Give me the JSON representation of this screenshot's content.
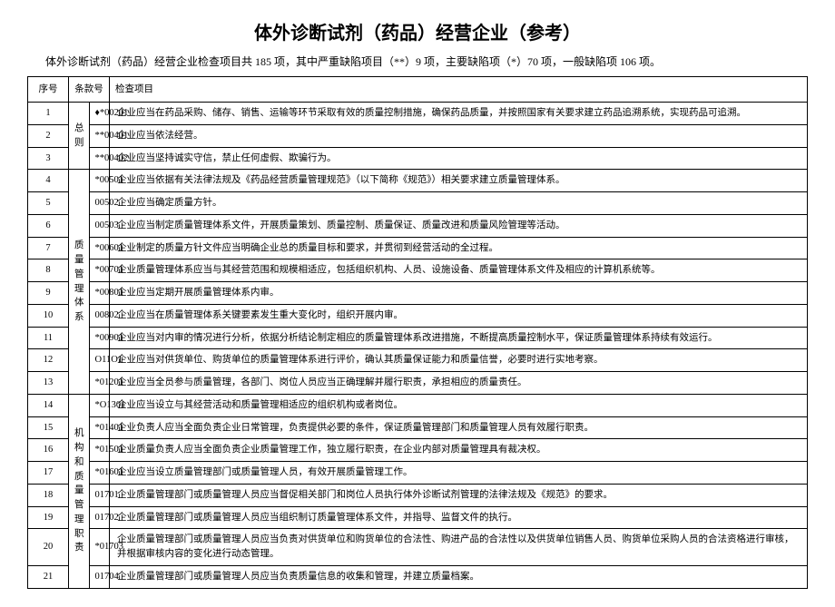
{
  "title": "体外诊断试剂（药品）经营企业（参考）",
  "subtitle": "体外诊断试剂（药品）经营企业检查项目共 185 项，其中严重缺陷项目（**）9 项，主要缺陷项（*）70 项，一般缺陷项 106 项。",
  "headers": {
    "seq": "序号",
    "clause": "条款号",
    "item": "检查项目"
  },
  "groups": [
    {
      "category": "总则",
      "rows": [
        {
          "seq": "1",
          "code": "♦*00201",
          "item": "企业应当在药品采购、储存、销售、运输等环节采取有效的质量控制措施，确保药品质量，并按照国家有关要求建立药品追溯系统，实现药品可追溯。"
        },
        {
          "seq": "2",
          "code": "**00401",
          "item": "企业应当依法经营。"
        },
        {
          "seq": "3",
          "code": "**00402",
          "item": "企业应当坚持诚实守信，禁止任何虚假、欺骗行为。"
        }
      ]
    },
    {
      "category": "质量管理体系",
      "rows": [
        {
          "seq": "4",
          "code": "*00501",
          "item": "企业应当依据有关法律法规及《药品经营质量管理规范》（以下简称《规范》）相关要求建立质量管理体系。"
        },
        {
          "seq": "5",
          "code": "00502",
          "item": "企业应当确定质量方针。"
        },
        {
          "seq": "6",
          "code": "00503",
          "item": "企业应当制定质量管理体系文件，开展质量策划、质量控制、质量保证、质量改进和质量风险管理等活动。"
        },
        {
          "seq": "7",
          "code": "*00601",
          "item": "企业制定的质量方针文件应当明确企业总的质量目标和要求，并贯彻到经营活动的全过程。"
        },
        {
          "seq": "8",
          "code": "*00701",
          "item": "企业质量管理体系应当与其经营范围和规模相适应，包括组织机构、人员、设施设备、质量管理体系文件及相应的计算机系统等。"
        },
        {
          "seq": "9",
          "code": "*00801",
          "item": "企业应当定期开展质量管理体系内审。"
        },
        {
          "seq": "10",
          "code": "00802",
          "item": "企业应当在质量管理体系关键要素发生重大变化时，组织开展内审。"
        },
        {
          "seq": "11",
          "code": "*00901",
          "item": "企业应当对内审的情况进行分析，依据分析结论制定相应的质量管理体系改进措施，不断提高质量控制水平，保证质量管理体系持续有效运行。"
        },
        {
          "seq": "12",
          "code": "O11O1",
          "item": "企业应当对供货单位、购货单位的质量管理体系进行评价，确认其质量保证能力和质量信誉，必要时进行实地考察。"
        },
        {
          "seq": "13",
          "code": "*01201",
          "item": "企业应当全员参与质量管理，各部门、岗位人员应当正确理解并履行职责，承担相应的质量责任。"
        }
      ]
    },
    {
      "category": "机构和质量管理职责",
      "rows": [
        {
          "seq": "14",
          "code": "*O1301",
          "item": "企业应当设立与其经营活动和质量管理相适应的组织机构或者岗位。"
        },
        {
          "seq": "15",
          "code": "*01401",
          "item": "企业负责人应当全面负责企业日常管理，负责提供必要的条件，保证质量管理部门和质量管理人员有效履行职责。"
        },
        {
          "seq": "16",
          "code": "*01501",
          "item": "企业质量负责人应当全面负责企业质量管理工作，独立履行职责，在企业内部对质量管理具有裁决权。"
        },
        {
          "seq": "17",
          "code": "*01601",
          "item": "企业应当设立质量管理部门或质量管理人员，有效开展质量管理工作。"
        },
        {
          "seq": "18",
          "code": "01701",
          "item": "企业质量管理部门或质量管理人员应当督促相关部门和岗位人员执行体外诊断试剂管理的法律法规及《规范》的要求。"
        },
        {
          "seq": "19",
          "code": "01702",
          "item": "企业质量管理部门或质量管理人员应当组织制订质量管理体系文件，并指导、监督文件的执行。"
        },
        {
          "seq": "20",
          "code": "*01703",
          "item": "企业质量管理部门或质量管理人员应当负责对供货单位和购货单位的合法性、购进产品的合法性以及供货单位销售人员、购货单位采购人员的合法资格进行审核，并根据审核内容的变化进行动态管理。"
        },
        {
          "seq": "21",
          "code": "01704",
          "item": "企业质量管理部门或质量管理人员应当负责质量信息的收集和管理，并建立质量档案。"
        }
      ]
    }
  ]
}
